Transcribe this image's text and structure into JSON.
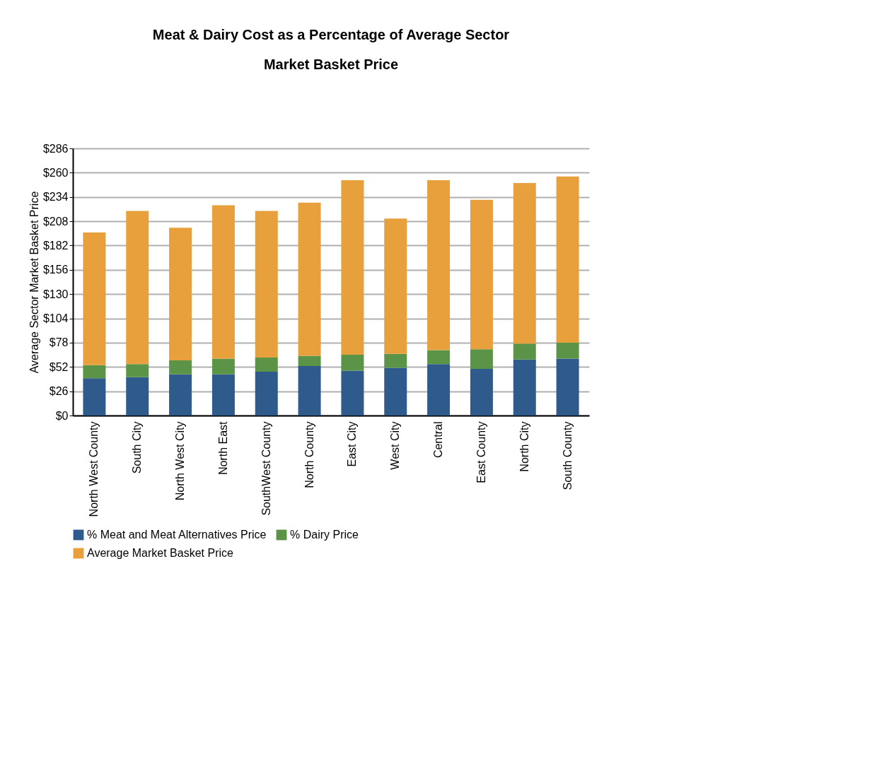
{
  "chart_data": {
    "type": "bar",
    "title": "Meat & Dairy Cost as a Percentage of Average Sector Market Basket Price",
    "ylabel": "Average Sector Market Basket Price",
    "categories": [
      "North West County",
      "South City",
      "North West City",
      "North East",
      "SouthWest County",
      "North County",
      "East City",
      "West City",
      "Central",
      "East County",
      "North City",
      "South County"
    ],
    "stacked": true,
    "series": [
      {
        "name": "% Meat and Meat Alternatives Price",
        "color": "#2e5a8c",
        "values": [
          40,
          41,
          44,
          44,
          47,
          53,
          48,
          51,
          55,
          50,
          60,
          61
        ]
      },
      {
        "name": "% Dairy Price",
        "color": "#5b9447",
        "values": [
          14,
          14,
          15,
          17,
          15,
          11,
          17,
          15,
          15,
          21,
          17,
          17
        ]
      },
      {
        "name": "Average Market Basket Price",
        "color": "#e8a03c",
        "values": [
          142,
          164,
          142,
          164,
          157,
          164,
          187,
          145,
          182,
          160,
          172,
          178
        ]
      }
    ],
    "ylim": [
      0,
      286
    ],
    "yticks": [
      {
        "value": 0,
        "label": "$0"
      },
      {
        "value": 26,
        "label": "$26"
      },
      {
        "value": 52,
        "label": "$52"
      },
      {
        "value": 78,
        "label": "$78"
      },
      {
        "value": 104,
        "label": "$104"
      },
      {
        "value": 130,
        "label": "$130"
      },
      {
        "value": 156,
        "label": "$156"
      },
      {
        "value": 182,
        "label": "$182"
      },
      {
        "value": 208,
        "label": "$208"
      },
      {
        "value": 234,
        "label": "$234"
      },
      {
        "value": 260,
        "label": "$260"
      },
      {
        "value": 286,
        "label": "$286"
      }
    ],
    "grid": "y",
    "legend": "bottom"
  }
}
